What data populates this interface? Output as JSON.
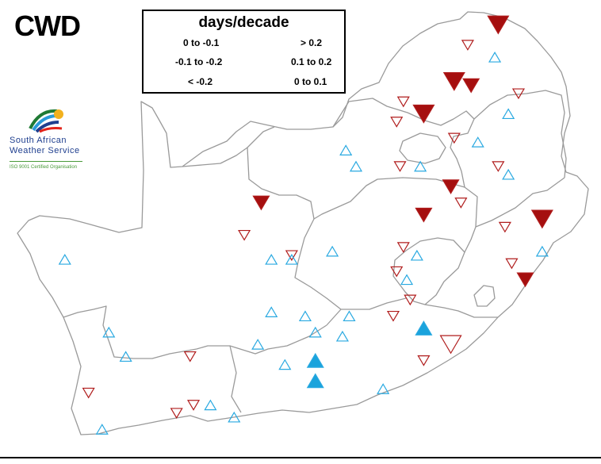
{
  "title": "CWD",
  "legend": {
    "title": "days/decade",
    "negative": [
      {
        "label": "0 to -0.1",
        "size": "small"
      },
      {
        "label": "-0.1 to -0.2",
        "size": "medium"
      },
      {
        "label": "< -0.2",
        "size": "large"
      }
    ],
    "positive": [
      {
        "label": "> 0.2",
        "size": "large"
      },
      {
        "label": "0.1 to 0.2",
        "size": "medium"
      },
      {
        "label": "0 to 0.1",
        "size": "small"
      }
    ]
  },
  "logo": {
    "line1": "South  African",
    "line2": "Weather Service",
    "iso": "ISO 9001 Certified Organisation"
  },
  "colors": {
    "decrease": "#b01c1c",
    "decrease_filled": "#a50f0f",
    "increase": "#29a9e1",
    "increase_filled": "#1aa3dc",
    "boundary": "#9a9a9a"
  },
  "stations": [
    {
      "lon": 30.7,
      "lat": -22.6,
      "cls": "neg_large_filled"
    },
    {
      "lon": 29.8,
      "lat": -23.1,
      "cls": "neg_small"
    },
    {
      "lon": 30.6,
      "lat": -23.4,
      "cls": "pos_small"
    },
    {
      "lon": 29.4,
      "lat": -24.0,
      "cls": "neg_large_filled"
    },
    {
      "lon": 29.9,
      "lat": -24.1,
      "cls": "neg_medium_filled"
    },
    {
      "lon": 31.3,
      "lat": -24.3,
      "cls": "neg_small"
    },
    {
      "lon": 27.9,
      "lat": -24.5,
      "cls": "neg_small"
    },
    {
      "lon": 28.5,
      "lat": -24.8,
      "cls": "neg_large_filled"
    },
    {
      "lon": 27.7,
      "lat": -25.0,
      "cls": "neg_small"
    },
    {
      "lon": 31.0,
      "lat": -24.8,
      "cls": "pos_small"
    },
    {
      "lon": 29.4,
      "lat": -25.4,
      "cls": "neg_small"
    },
    {
      "lon": 30.1,
      "lat": -25.5,
      "cls": "pos_small"
    },
    {
      "lon": 26.2,
      "lat": -25.7,
      "cls": "pos_small"
    },
    {
      "lon": 26.5,
      "lat": -26.1,
      "cls": "pos_small"
    },
    {
      "lon": 27.8,
      "lat": -26.1,
      "cls": "neg_small"
    },
    {
      "lon": 28.4,
      "lat": -26.1,
      "cls": "pos_small"
    },
    {
      "lon": 30.7,
      "lat": -26.1,
      "cls": "neg_small"
    },
    {
      "lon": 31.0,
      "lat": -26.3,
      "cls": "pos_small"
    },
    {
      "lon": 29.3,
      "lat": -26.6,
      "cls": "neg_medium_filled"
    },
    {
      "lon": 23.7,
      "lat": -27.0,
      "cls": "neg_medium_filled"
    },
    {
      "lon": 29.6,
      "lat": -27.0,
      "cls": "neg_small"
    },
    {
      "lon": 28.5,
      "lat": -27.3,
      "cls": "neg_medium_filled"
    },
    {
      "lon": 32.0,
      "lat": -27.4,
      "cls": "neg_large_filled"
    },
    {
      "lon": 30.9,
      "lat": -27.6,
      "cls": "neg_small"
    },
    {
      "lon": 23.2,
      "lat": -27.8,
      "cls": "neg_small"
    },
    {
      "lon": 27.9,
      "lat": -28.1,
      "cls": "neg_small"
    },
    {
      "lon": 32.0,
      "lat": -28.2,
      "cls": "pos_small"
    },
    {
      "lon": 24.6,
      "lat": -28.3,
      "cls": "neg_small"
    },
    {
      "lon": 25.8,
      "lat": -28.2,
      "cls": "pos_small"
    },
    {
      "lon": 28.3,
      "lat": -28.3,
      "cls": "pos_small"
    },
    {
      "lon": 17.9,
      "lat": -28.4,
      "cls": "pos_small"
    },
    {
      "lon": 24.0,
      "lat": -28.4,
      "cls": "pos_small"
    },
    {
      "lon": 24.6,
      "lat": -28.4,
      "cls": "pos_small"
    },
    {
      "lon": 31.1,
      "lat": -28.5,
      "cls": "neg_small"
    },
    {
      "lon": 27.7,
      "lat": -28.7,
      "cls": "neg_small"
    },
    {
      "lon": 28.0,
      "lat": -28.9,
      "cls": "pos_small"
    },
    {
      "lon": 31.5,
      "lat": -28.9,
      "cls": "neg_medium_filled"
    },
    {
      "lon": 28.1,
      "lat": -29.4,
      "cls": "neg_small"
    },
    {
      "lon": 24.0,
      "lat": -29.7,
      "cls": "pos_small"
    },
    {
      "lon": 25.0,
      "lat": -29.8,
      "cls": "pos_small"
    },
    {
      "lon": 26.3,
      "lat": -29.8,
      "cls": "pos_small"
    },
    {
      "lon": 27.6,
      "lat": -29.8,
      "cls": "neg_small"
    },
    {
      "lon": 25.3,
      "lat": -30.2,
      "cls": "pos_small"
    },
    {
      "lon": 26.1,
      "lat": -30.3,
      "cls": "pos_small"
    },
    {
      "lon": 28.5,
      "lat": -30.1,
      "cls": "pos_medium_filled"
    },
    {
      "lon": 19.2,
      "lat": -30.2,
      "cls": "pos_small"
    },
    {
      "lon": 23.6,
      "lat": -30.5,
      "cls": "pos_small"
    },
    {
      "lon": 29.3,
      "lat": -30.5,
      "cls": "neg_large"
    },
    {
      "lon": 19.7,
      "lat": -30.8,
      "cls": "pos_small"
    },
    {
      "lon": 21.6,
      "lat": -30.8,
      "cls": "neg_small"
    },
    {
      "lon": 24.4,
      "lat": -31.0,
      "cls": "pos_small"
    },
    {
      "lon": 25.3,
      "lat": -30.9,
      "cls": "pos_medium_filled"
    },
    {
      "lon": 28.5,
      "lat": -30.9,
      "cls": "neg_small"
    },
    {
      "lon": 25.3,
      "lat": -31.4,
      "cls": "pos_medium_filled"
    },
    {
      "lon": 18.6,
      "lat": -31.7,
      "cls": "neg_small"
    },
    {
      "lon": 27.3,
      "lat": -31.6,
      "cls": "pos_small"
    },
    {
      "lon": 21.7,
      "lat": -32.0,
      "cls": "neg_small"
    },
    {
      "lon": 22.2,
      "lat": -32.0,
      "cls": "pos_small"
    },
    {
      "lon": 21.2,
      "lat": -32.2,
      "cls": "neg_small"
    },
    {
      "lon": 19.0,
      "lat": -32.6,
      "cls": "pos_small"
    },
    {
      "lon": 22.9,
      "lat": -32.3,
      "cls": "pos_small"
    }
  ]
}
